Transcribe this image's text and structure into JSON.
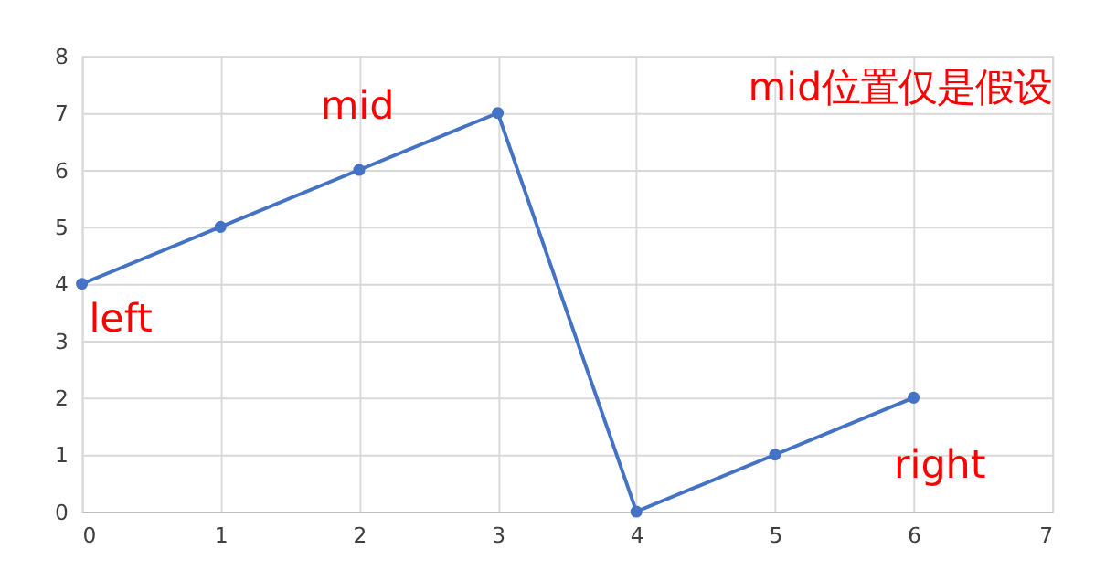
{
  "chart_data": {
    "type": "line",
    "x": [
      0,
      1,
      2,
      3,
      4,
      5,
      6
    ],
    "series": [
      {
        "color": "#4472c4",
        "values": [
          4,
          5,
          6,
          7,
          0,
          1,
          2
        ]
      }
    ],
    "xlim": [
      0,
      7
    ],
    "xticks": [
      0,
      1,
      2,
      3,
      4,
      5,
      6,
      7
    ],
    "ylim": [
      0,
      8
    ],
    "yticks": [
      0,
      1,
      2,
      3,
      4,
      5,
      6,
      7,
      8
    ],
    "grid": true,
    "marker": "circle",
    "line_style": "solid",
    "annotations": [
      "left",
      "mid",
      "right",
      "mid位置仅是假设"
    ]
  }
}
